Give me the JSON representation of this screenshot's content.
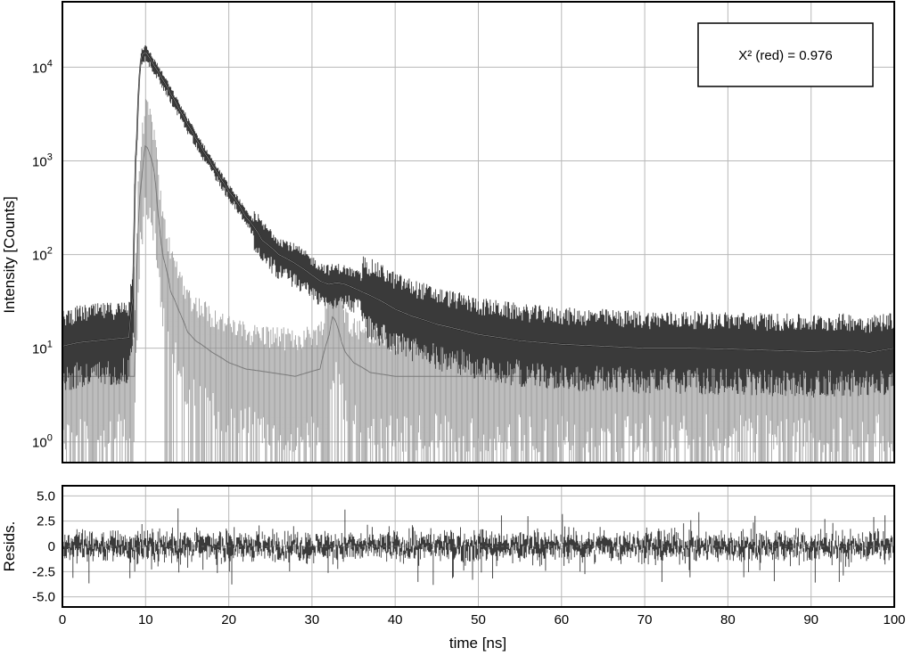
{
  "chart_data": [
    {
      "type": "line",
      "title": "",
      "xlabel": "time [ns]",
      "ylabel": "Intensity [Counts]",
      "yscale": "log",
      "xlim": [
        0,
        100
      ],
      "ylim": [
        0.6,
        50000
      ],
      "grid": true,
      "x_ticks": [
        0,
        10,
        20,
        30,
        40,
        50,
        60,
        70,
        80,
        90,
        100
      ],
      "y_ticks": [
        {
          "value": 1,
          "base": "10",
          "exp": "0"
        },
        {
          "value": 10,
          "base": "10",
          "exp": "1"
        },
        {
          "value": 100,
          "base": "10",
          "exp": "2"
        },
        {
          "value": 1000,
          "base": "10",
          "exp": "3"
        },
        {
          "value": 10000,
          "base": "10",
          "exp": "4"
        }
      ],
      "annotation": "X² (red) = 0.976",
      "series": [
        {
          "role": "decay",
          "color": "#3c3c3c",
          "x": [
            0,
            2,
            4,
            6,
            8,
            8.6,
            9,
            9.5,
            10,
            11,
            12,
            13,
            14,
            15,
            16,
            17,
            18,
            19,
            20,
            22,
            24,
            26,
            28,
            30,
            31,
            32,
            33,
            34,
            36,
            38,
            40,
            42,
            45,
            50,
            55,
            60,
            65,
            70,
            75,
            80,
            85,
            90,
            95,
            97,
            100
          ],
          "values": [
            10.5,
            11.5,
            12,
            12.5,
            13,
            40,
            2000,
            13500,
            14500,
            10500,
            7500,
            5200,
            3600,
            2500,
            1750,
            1250,
            900,
            650,
            470,
            255,
            142,
            100,
            80,
            60,
            52,
            48,
            50,
            48,
            40,
            33,
            26,
            22,
            18,
            14,
            12,
            11,
            10.5,
            10,
            10,
            9.8,
            9.5,
            9.2,
            9.5,
            9,
            10
          ]
        },
        {
          "role": "irf",
          "color": "#8f8f8f",
          "x": [
            0,
            4,
            8,
            8.7,
            9,
            9.5,
            10,
            10.5,
            11,
            11.5,
            12,
            13,
            14,
            15,
            16,
            18,
            20,
            22,
            25,
            28,
            31,
            32,
            32.5,
            33,
            33.5,
            34,
            35,
            37,
            40,
            45,
            50,
            60,
            70,
            80,
            90,
            100
          ],
          "values": [
            5,
            5,
            5,
            5,
            80,
            600,
            1500,
            1200,
            800,
            250,
            100,
            40,
            25,
            15,
            12,
            9,
            7,
            6,
            5.5,
            5,
            6,
            13,
            22,
            18,
            12,
            9,
            7,
            5.5,
            5,
            5,
            5,
            5,
            5,
            5,
            5,
            5
          ]
        }
      ]
    },
    {
      "type": "line",
      "title": "",
      "xlabel": "time [ns]",
      "ylabel": "Resids.",
      "xlim": [
        0,
        100
      ],
      "ylim": [
        -6,
        6
      ],
      "grid": true,
      "x_ticks": [
        0,
        10,
        20,
        30,
        40,
        50,
        60,
        70,
        80,
        90,
        100
      ],
      "y_ticks": [
        {
          "value": 5,
          "label": "5.0"
        },
        {
          "value": 2.5,
          "label": "2.5"
        },
        {
          "value": 0,
          "label": "0"
        },
        {
          "value": -2.5,
          "label": "-2.5"
        },
        {
          "value": -5,
          "label": "-5.0"
        }
      ],
      "series": [
        {
          "role": "residuals",
          "color": "#3c3c3c",
          "x": [
            0,
            10,
            20,
            30,
            40,
            50,
            60,
            70,
            80,
            90,
            100
          ],
          "values": [
            0,
            0,
            0,
            0,
            0,
            0,
            0,
            0,
            0,
            0,
            0
          ]
        }
      ]
    }
  ]
}
